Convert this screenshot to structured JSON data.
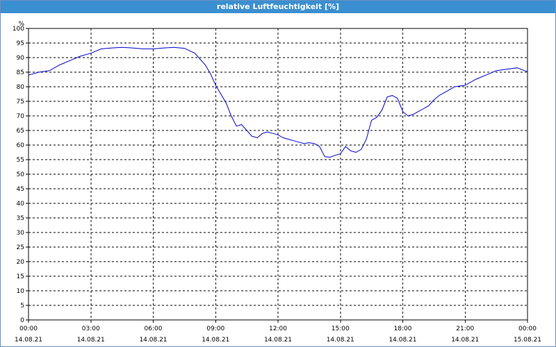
{
  "window": {
    "title": "relative Luftfeuchtigkeit [%]"
  },
  "chart_data": {
    "type": "line",
    "title": "relative Luftfeuchtigkeit [%]",
    "ylabel": "%",
    "ylim": [
      0,
      100
    ],
    "yticks": [
      0,
      5,
      10,
      15,
      20,
      25,
      30,
      35,
      40,
      45,
      50,
      55,
      60,
      65,
      70,
      75,
      80,
      85,
      90,
      95,
      100
    ],
    "xlim": [
      "14.08.21 00:00",
      "15.08.21 00:00"
    ],
    "xticks": [
      {
        "time": "00:00",
        "date": "14.08.21"
      },
      {
        "time": "03:00",
        "date": "14.08.21"
      },
      {
        "time": "06:00",
        "date": "14.08.21"
      },
      {
        "time": "09:00",
        "date": "14.08.21"
      },
      {
        "time": "12:00",
        "date": "14.08.21"
      },
      {
        "time": "15:00",
        "date": "14.08.21"
      },
      {
        "time": "18:00",
        "date": "14.08.21"
      },
      {
        "time": "21:00",
        "date": "14.08.21"
      },
      {
        "time": "00:00",
        "date": "15.08.21"
      }
    ],
    "grid": true,
    "series": [
      {
        "color": "#0000cc",
        "x": [
          "00:00",
          "00:30",
          "01:00",
          "01:30",
          "02:00",
          "02:30",
          "03:00",
          "03:30",
          "04:00",
          "04:30",
          "05:00",
          "05:30",
          "06:00",
          "06:30",
          "07:00",
          "07:30",
          "08:00",
          "08:30",
          "08:45",
          "09:00",
          "09:15",
          "09:30",
          "09:45",
          "10:00",
          "10:15",
          "10:30",
          "10:45",
          "11:00",
          "11:15",
          "11:30",
          "11:45",
          "12:00",
          "12:15",
          "12:30",
          "12:45",
          "13:00",
          "13:15",
          "13:30",
          "13:45",
          "14:00",
          "14:15",
          "14:30",
          "14:45",
          "15:00",
          "15:15",
          "15:30",
          "15:45",
          "16:00",
          "16:15",
          "16:30",
          "16:45",
          "17:00",
          "17:15",
          "17:30",
          "17:45",
          "18:00",
          "18:15",
          "18:30",
          "18:45",
          "19:00",
          "19:15",
          "19:30",
          "19:45",
          "20:00",
          "20:30",
          "21:00",
          "21:30",
          "22:00",
          "22:30",
          "23:00",
          "23:30",
          "23:59"
        ],
        "y": [
          84.0,
          85.0,
          85.5,
          87.5,
          89.0,
          90.5,
          91.5,
          93.0,
          93.3,
          93.5,
          93.3,
          93.0,
          93.0,
          93.3,
          93.5,
          93.2,
          91.5,
          87.5,
          84.5,
          80.5,
          77.5,
          74.5,
          70.0,
          66.5,
          67.0,
          65.0,
          63.0,
          62.5,
          64.0,
          64.5,
          64.0,
          63.5,
          62.5,
          62.0,
          61.5,
          61.0,
          60.5,
          60.8,
          60.5,
          59.5,
          56.0,
          55.8,
          56.5,
          57.0,
          59.5,
          58.0,
          57.5,
          58.5,
          62.0,
          68.5,
          69.5,
          72.0,
          76.5,
          77.0,
          76.0,
          71.5,
          70.0,
          70.5,
          71.5,
          72.5,
          73.5,
          75.5,
          77.0,
          78.0,
          80.0,
          80.5,
          82.5,
          84.0,
          85.5,
          86.0,
          86.5,
          85.2
        ]
      }
    ]
  }
}
